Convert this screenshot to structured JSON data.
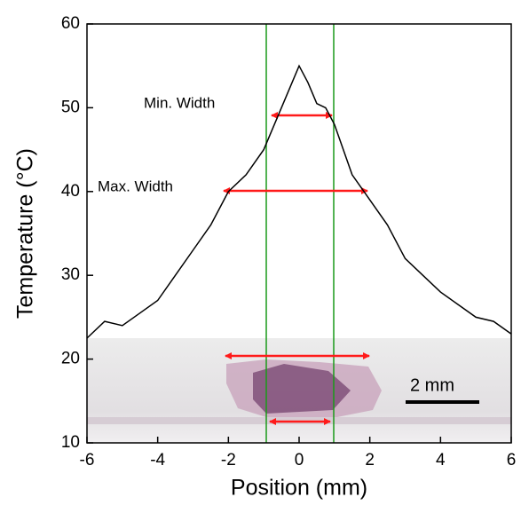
{
  "chart_data": {
    "type": "line",
    "x_label": "Position (mm)",
    "y_label": "Temperature (°C)",
    "annotations": [
      "Min. Width",
      "Max. Width",
      "2 mm"
    ],
    "x": [
      -6,
      -5.5,
      -5,
      -4.5,
      -4,
      -3.5,
      -3,
      -2.5,
      -2,
      -1.5,
      -1,
      -0.5,
      -0.25,
      0,
      0.25,
      0.5,
      0.75,
      1,
      1.5,
      2,
      2.5,
      3,
      3.5,
      4,
      4.5,
      5,
      5.5,
      6
    ],
    "values": [
      22.5,
      24.5,
      24,
      25.5,
      27,
      30,
      33,
      36,
      40,
      42,
      45,
      50,
      52.5,
      55,
      53,
      50.5,
      50,
      48,
      42,
      39,
      36,
      32,
      30,
      28,
      26.5,
      25,
      24.5,
      23
    ],
    "color": "#000000",
    "xlim": [
      -6,
      6
    ],
    "xticks": [
      -6,
      -4,
      -2,
      0,
      2,
      4,
      6
    ],
    "ylim": [
      10,
      60
    ],
    "yticks": [
      10,
      20,
      30,
      40,
      50,
      60
    ]
  }
}
